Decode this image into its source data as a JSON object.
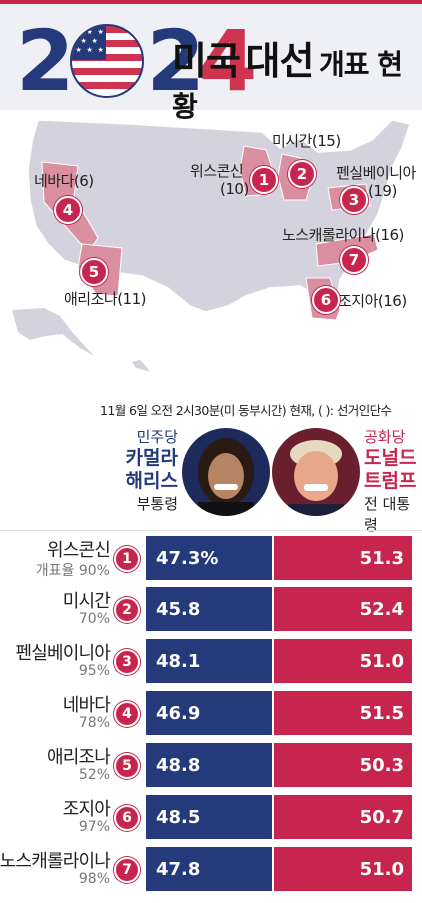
{
  "header": {
    "year_digit_1": "2",
    "year_digit_3": "2",
    "year_digit_4": "4",
    "title_big_1": "미국",
    "title_big_2": "대선",
    "title_small": "개표 현황"
  },
  "map": {
    "states": [
      {
        "num": "1",
        "label": "위스콘신",
        "electors": "(10)"
      },
      {
        "num": "2",
        "label": "미시간(15)"
      },
      {
        "num": "3",
        "label": "펜실베이니아",
        "electors": "(19)"
      },
      {
        "num": "4",
        "label": "네바다(6)"
      },
      {
        "num": "5",
        "label": "애리조나(11)"
      },
      {
        "num": "6",
        "label": "조지아(16)"
      },
      {
        "num": "7",
        "label": "노스캐롤라이나(16)"
      }
    ]
  },
  "note": "11월 6일 오전 2시30분(미 동부시간) 현재, ( ): 선거인단수",
  "candidates": {
    "dem": {
      "party": "민주당",
      "name_line1": "카멀라",
      "name_line2": "해리스",
      "position": "부통령"
    },
    "rep": {
      "party": "공화당",
      "name_line1": "도널드",
      "name_line2": "트럼프",
      "position": "전 대통령"
    }
  },
  "results": [
    {
      "num": "1",
      "state": "위스콘신",
      "count_rate": "개표율 90%",
      "dem": "47.3%",
      "rep": "51.3"
    },
    {
      "num": "2",
      "state": "미시간",
      "count_rate": "70%",
      "dem": "45.8",
      "rep": "52.4"
    },
    {
      "num": "3",
      "state": "펜실베이니아",
      "count_rate": "95%",
      "dem": "48.1",
      "rep": "51.0"
    },
    {
      "num": "4",
      "state": "네바다",
      "count_rate": "78%",
      "dem": "46.9",
      "rep": "51.5"
    },
    {
      "num": "5",
      "state": "애리조나",
      "count_rate": "52%",
      "dem": "48.8",
      "rep": "50.3"
    },
    {
      "num": "6",
      "state": "조지아",
      "count_rate": "97%",
      "dem": "48.5",
      "rep": "50.7"
    },
    {
      "num": "7",
      "state": "노스캐롤라이나",
      "count_rate": "98%",
      "dem": "47.8",
      "rep": "51.0"
    }
  ],
  "colors": {
    "democrat": "#243a7a",
    "republican": "#c7254e",
    "map_land": "#d4d2dc",
    "highlight": "#d98fa0"
  }
}
